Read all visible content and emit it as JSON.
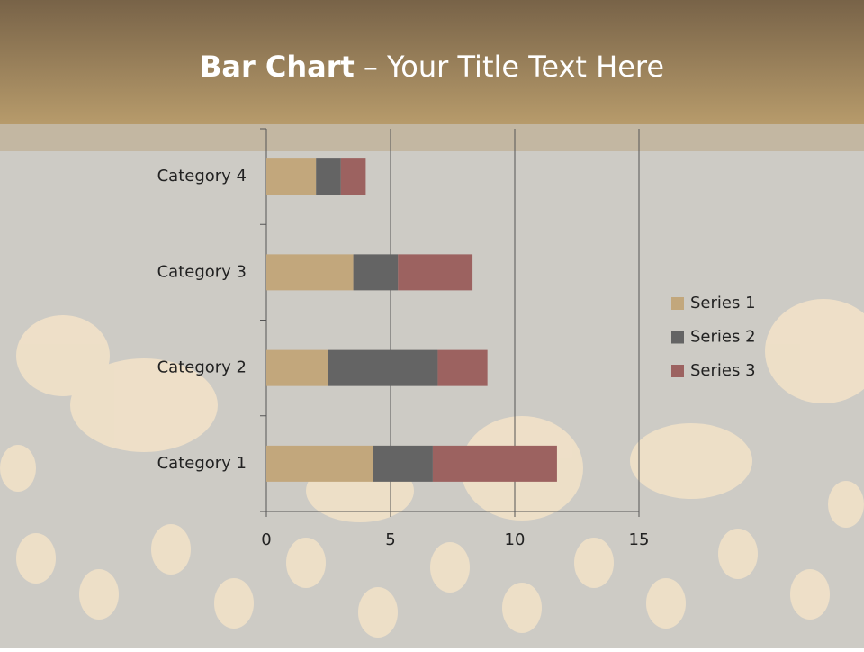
{
  "chart_data": {
    "type": "stacked-barh",
    "title": {
      "bold": "Bar Chart",
      "rest": "– Your Title Text Here"
    },
    "categories": [
      "Category 1",
      "Category 2",
      "Category 3",
      "Category 4"
    ],
    "series": [
      {
        "name": "Series 1",
        "color": "#c2a77c",
        "values": [
          4.3,
          2.5,
          3.5,
          2.0
        ]
      },
      {
        "name": "Series 2",
        "color": "#646464",
        "values": [
          2.4,
          4.4,
          1.8,
          1.0
        ]
      },
      {
        "name": "Series 3",
        "color": "#9c6260",
        "values": [
          5.0,
          2.0,
          3.0,
          1.0
        ]
      }
    ],
    "xlim": [
      0,
      15
    ],
    "xticks": [
      0,
      5,
      10,
      15
    ],
    "grid": true,
    "legend": "right"
  }
}
